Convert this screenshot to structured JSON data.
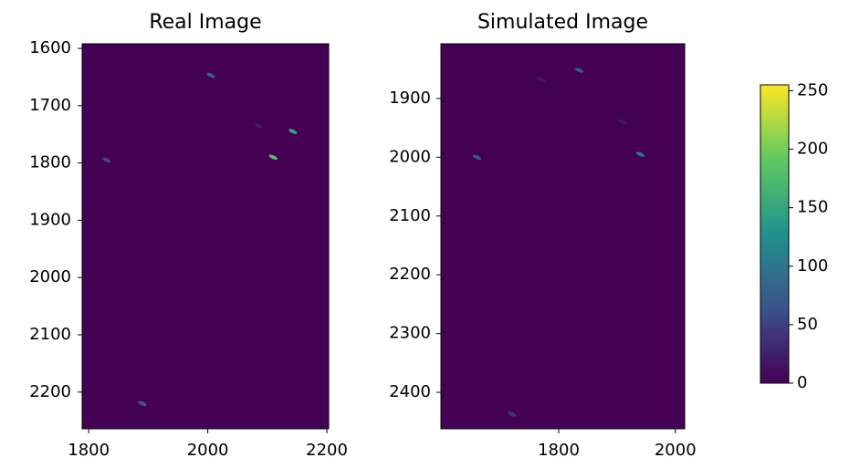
{
  "chart_data": [
    {
      "type": "image",
      "title": "Real Image",
      "xlim": [
        1789,
        2203
      ],
      "ylim": [
        2264,
        1592
      ],
      "xticks": [
        1800,
        2000,
        2200
      ],
      "yticks": [
        1600,
        1700,
        1800,
        1900,
        2000,
        2100,
        2200
      ],
      "spots": {
        "x": [
          2005,
          2110,
          1830,
          1890,
          2143,
          2085
        ],
        "y": [
          1647,
          1790,
          1795,
          2220,
          1745,
          1735
        ],
        "values": [
          80,
          180,
          60,
          80,
          150,
          20
        ]
      }
    },
    {
      "type": "image",
      "title": "Simulated Image",
      "xlim": [
        1598,
        2016
      ],
      "ylim": [
        2462,
        1807
      ],
      "xticks": [
        1800,
        2000
      ],
      "yticks": [
        1900,
        2000,
        2100,
        2200,
        2300,
        2400
      ],
      "spots": {
        "x": [
          1835,
          1940,
          1660,
          1720,
          1770,
          1910
        ],
        "y": [
          1852,
          1995,
          2000,
          2437,
          1868,
          1940
        ],
        "values": [
          70,
          100,
          70,
          40,
          20,
          20
        ]
      }
    },
    {
      "type": "colorbar",
      "ylim": [
        0,
        255
      ],
      "yticks": [
        0,
        50,
        100,
        150,
        200,
        250
      ],
      "colormap": [
        "#440154",
        "#3b528b",
        "#21918c",
        "#5ec962",
        "#fde725"
      ]
    }
  ]
}
